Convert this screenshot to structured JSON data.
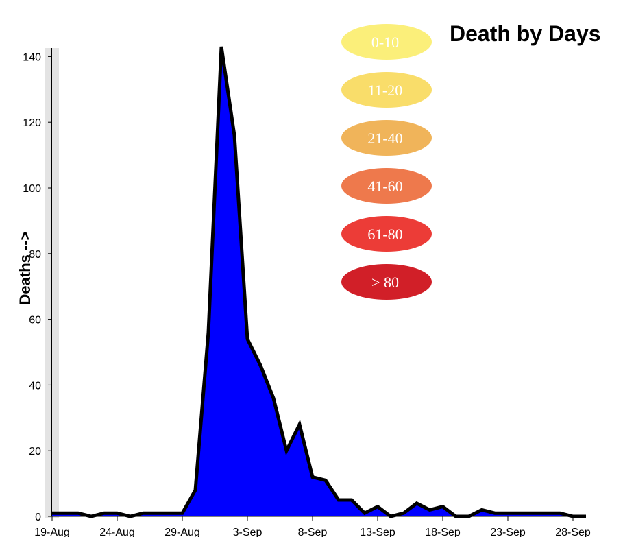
{
  "chart_data": {
    "type": "area",
    "title": "Death by Days",
    "xlabel": "",
    "ylabel": "Deaths -->",
    "x_tick_labels": [
      "19-Aug",
      "24-Aug",
      "29-Aug",
      "3-Sep",
      "8-Sep",
      "13-Sep",
      "18-Sep",
      "23-Sep",
      "28-Sep"
    ],
    "y_tick_labels": [
      "0",
      "20",
      "40",
      "60",
      "80",
      "100",
      "120",
      "140"
    ],
    "ylim": [
      0,
      143
    ],
    "grid": false,
    "fill_color": "#0000ff",
    "stroke_color": "#000000",
    "legend": {
      "placement": "top-center",
      "entries": [
        {
          "label": "0-10",
          "color": "#fbef7a"
        },
        {
          "label": "11-20",
          "color": "#f9dd6a"
        },
        {
          "label": "21-40",
          "color": "#f0b45a"
        },
        {
          "label": "41-60",
          "color": "#ee794c"
        },
        {
          "label": "61-80",
          "color": "#ec3c37"
        },
        {
          "label": "> 80",
          "color": "#d11f28"
        }
      ]
    },
    "series": [
      {
        "x": [
          "19-Aug",
          "20-Aug",
          "21-Aug",
          "22-Aug",
          "23-Aug",
          "24-Aug",
          "25-Aug",
          "26-Aug",
          "27-Aug",
          "28-Aug",
          "29-Aug",
          "30-Aug",
          "31-Aug",
          "1-Sep",
          "2-Sep",
          "3-Sep",
          "4-Sep",
          "5-Sep",
          "6-Sep",
          "7-Sep",
          "8-Sep",
          "9-Sep",
          "10-Sep",
          "11-Sep",
          "12-Sep",
          "13-Sep",
          "14-Sep",
          "15-Sep",
          "16-Sep",
          "17-Sep",
          "18-Sep",
          "19-Sep",
          "20-Sep",
          "21-Sep",
          "22-Sep",
          "23-Sep",
          "24-Sep",
          "25-Sep",
          "26-Sep",
          "27-Sep",
          "28-Sep",
          "29-Sep"
        ],
        "values": [
          1,
          1,
          1,
          0,
          1,
          1,
          0,
          1,
          1,
          1,
          1,
          8,
          56,
          143,
          116,
          54,
          46,
          36,
          20,
          28,
          12,
          11,
          5,
          5,
          1,
          3,
          0,
          1,
          4,
          2,
          3,
          0,
          0,
          2,
          1,
          1,
          1,
          1,
          1,
          1,
          0,
          0
        ]
      }
    ]
  }
}
